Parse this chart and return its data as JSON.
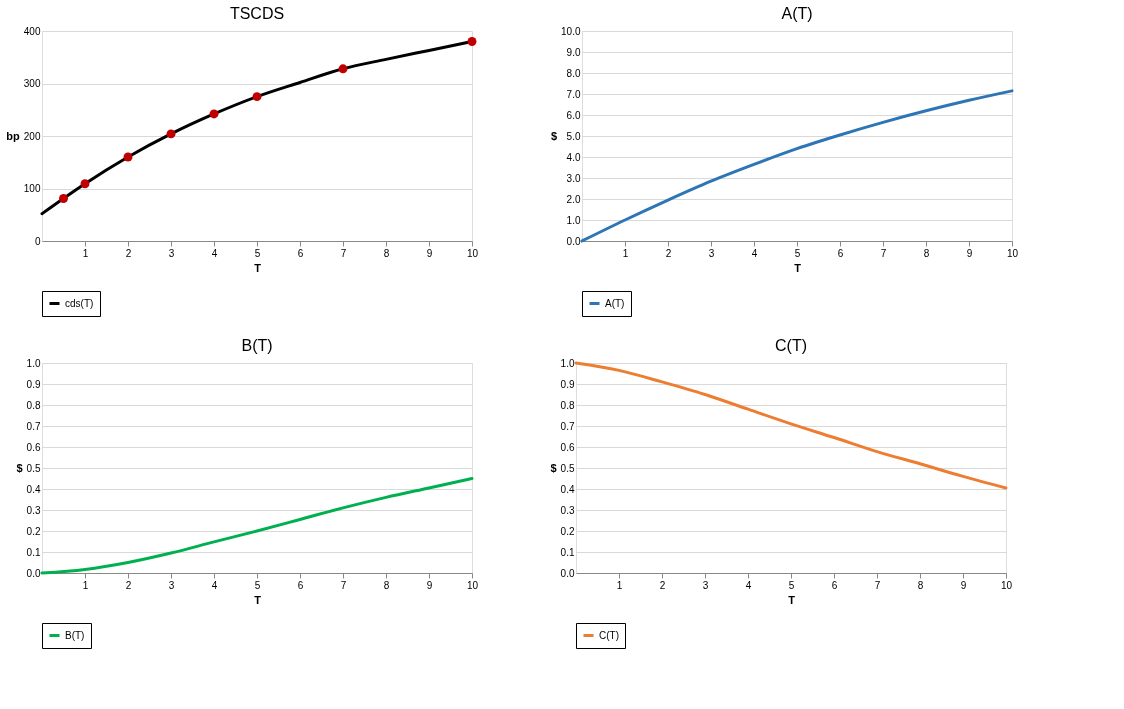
{
  "chart_data": [
    {
      "type": "line",
      "title": "TSCDS",
      "xlabel": "T",
      "ylabel": "bp",
      "xlim": [
        0,
        10
      ],
      "xticks": [
        1,
        2,
        3,
        4,
        5,
        6,
        7,
        8,
        9,
        10
      ],
      "ylim": [
        0,
        400
      ],
      "yticks": [
        0,
        100,
        200,
        300,
        400
      ],
      "grid": "y",
      "legend": "bottom",
      "series": [
        {
          "name": "cds(T)",
          "color": "#000000",
          "x": [
            0,
            0.5,
            1,
            2,
            3,
            4,
            5,
            6,
            7,
            8,
            9,
            10
          ],
          "values": [
            52,
            81,
            109,
            160,
            204,
            242,
            275,
            302,
            328,
            346,
            363,
            380
          ]
        },
        {
          "type": "scatter",
          "marker": "circle",
          "color": "#c00000",
          "x": [
            0.5,
            1,
            2,
            3,
            4,
            5,
            7,
            10
          ],
          "values": [
            81,
            109,
            160,
            204,
            242,
            275,
            328,
            380
          ]
        }
      ]
    },
    {
      "type": "line",
      "title": "A(T)",
      "xlabel": "T",
      "ylabel": "$",
      "xlim": [
        0,
        10
      ],
      "xticks": [
        1,
        2,
        3,
        4,
        5,
        6,
        7,
        8,
        9,
        10
      ],
      "ylim": [
        0,
        10
      ],
      "yticks": [
        {
          "value": 0,
          "label": "0.0"
        },
        {
          "value": 1,
          "label": "1.0"
        },
        {
          "value": 2,
          "label": "2.0"
        },
        {
          "value": 3,
          "label": "3.0"
        },
        {
          "value": 4,
          "label": "4.0"
        },
        {
          "value": 5,
          "label": "5.0"
        },
        {
          "value": 6,
          "label": "6.0"
        },
        {
          "value": 7,
          "label": "7.0"
        },
        {
          "value": 8,
          "label": "8.0"
        },
        {
          "value": 9,
          "label": "9.0"
        },
        {
          "value": 10,
          "label": "10.0"
        }
      ],
      "grid": "y",
      "legend": "bottom",
      "series": [
        {
          "name": "A(T)",
          "color": "#2e75b6",
          "x": [
            0,
            1,
            2,
            3,
            4,
            5,
            6,
            7,
            8,
            9,
            10
          ],
          "values": [
            0,
            1.0,
            1.95,
            2.85,
            3.65,
            4.4,
            5.05,
            5.65,
            6.2,
            6.7,
            7.15
          ]
        }
      ]
    },
    {
      "type": "line",
      "title": "B(T)",
      "xlabel": "T",
      "ylabel": "$",
      "xlim": [
        0,
        10
      ],
      "xticks": [
        1,
        2,
        3,
        4,
        5,
        6,
        7,
        8,
        9,
        10
      ],
      "ylim": [
        0,
        1
      ],
      "yticks": [
        {
          "value": 0,
          "label": "0.0"
        },
        0.1,
        0.2,
        0.3,
        0.4,
        0.5,
        0.6,
        0.7,
        0.8,
        0.9,
        {
          "value": 1,
          "label": "1.0"
        }
      ],
      "grid": "y",
      "legend": "bottom",
      "series": [
        {
          "name": "B(T)",
          "color": "#00b050",
          "x": [
            0,
            1,
            2,
            3,
            4,
            5,
            6,
            7,
            8,
            9,
            10
          ],
          "values": [
            0,
            0.017,
            0.05,
            0.095,
            0.148,
            0.2,
            0.255,
            0.31,
            0.36,
            0.405,
            0.45
          ]
        }
      ]
    },
    {
      "type": "line",
      "title": "C(T)",
      "xlabel": "T",
      "ylabel": "$",
      "xlim": [
        0,
        10
      ],
      "xticks": [
        1,
        2,
        3,
        4,
        5,
        6,
        7,
        8,
        9,
        10
      ],
      "ylim": [
        0,
        1
      ],
      "yticks": [
        {
          "value": 0,
          "label": "0.0"
        },
        0.1,
        0.2,
        0.3,
        0.4,
        0.5,
        0.6,
        0.7,
        0.8,
        0.9,
        {
          "value": 1,
          "label": "1.0"
        }
      ],
      "grid": "y",
      "legend": "bottom",
      "series": [
        {
          "name": "C(T)",
          "color": "#ed7d31",
          "x": [
            0,
            1,
            2,
            3,
            4,
            5,
            6,
            7,
            8,
            9,
            10
          ],
          "values": [
            1.0,
            0.965,
            0.91,
            0.85,
            0.78,
            0.71,
            0.645,
            0.578,
            0.52,
            0.46,
            0.405
          ]
        }
      ]
    }
  ]
}
